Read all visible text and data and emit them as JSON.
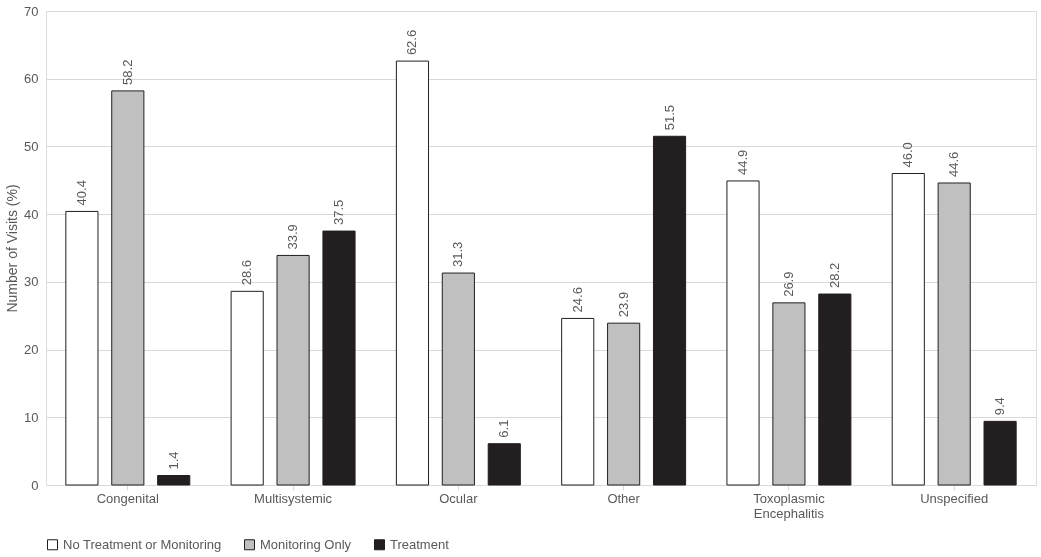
{
  "chart_data": {
    "type": "bar",
    "ylabel": "Number of Visits (%)",
    "categories": [
      "Congenital",
      "Multisystemic",
      "Ocular",
      "Other",
      "Toxoplasmic Encephalitis",
      "Unspecified"
    ],
    "series": [
      {
        "name": "No Treatment or Monitoring",
        "color": "#ffffff",
        "values": [
          40.4,
          28.6,
          62.6,
          24.6,
          44.9,
          46.0
        ],
        "value_labels": [
          "40.4",
          "28.6",
          "62.6",
          "24.6",
          "44.9",
          "46.0"
        ]
      },
      {
        "name": "Monitoring Only",
        "color": "#c0c0c0",
        "values": [
          58.2,
          33.9,
          31.3,
          23.9,
          26.9,
          44.6
        ],
        "value_labels": [
          "58.2",
          "33.9",
          "31.3",
          "23.9",
          "26.9",
          "44.6"
        ]
      },
      {
        "name": "Treatment",
        "color": "#231f20",
        "values": [
          1.4,
          37.5,
          6.1,
          51.5,
          28.2,
          9.4
        ],
        "value_labels": [
          "1.4",
          "37.5",
          "6.1",
          "51.5",
          "28.2",
          "9.4"
        ]
      }
    ],
    "ylim": [
      0,
      70
    ],
    "yticks": [
      0,
      10,
      20,
      30,
      40,
      50,
      60,
      70
    ],
    "grid": "y",
    "legend": "bottom"
  }
}
